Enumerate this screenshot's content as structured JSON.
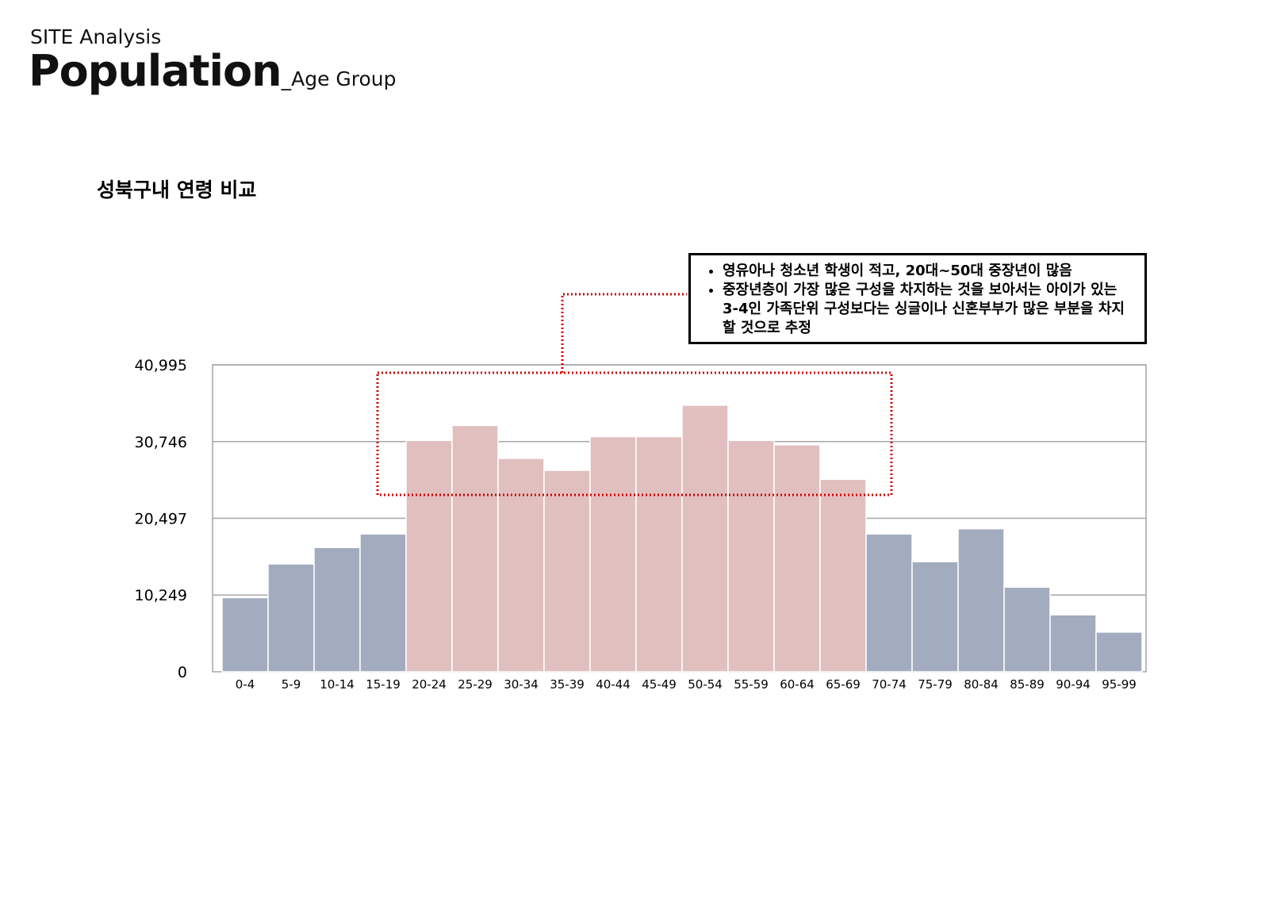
{
  "header": {
    "kicker": "SITE Analysis",
    "title": "Population",
    "title_suffix": "_Age Group"
  },
  "section_title": "성북구내 연령 비교",
  "callout": {
    "bullets": [
      "영유아나 청소년 학생이 적고, 20대~50대 중장년이 많음",
      "중장년층이 가장 많은 구성을 차지하는 것을 보아서는 아이가 있는 3-4인 가족단위 구성보다는 싱글이나 신혼부부가 많은 부분을 차지할 것으로 추정"
    ]
  },
  "colors": {
    "normal_bar": "#a3abbf",
    "highlight_bar": "#e1bfbf",
    "highlight_outline": "#d10000",
    "grid": "#a6a6a6"
  },
  "chart_data": {
    "type": "bar",
    "categories": [
      "0-4",
      "5-9",
      "10-14",
      "15-19",
      "20-24",
      "25-29",
      "30-34",
      "35-39",
      "40-44",
      "45-49",
      "50-54",
      "55-59",
      "60-64",
      "65-69",
      "70-74",
      "75-79",
      "80-84",
      "85-89",
      "90-94",
      "95-99"
    ],
    "values": [
      9900,
      14400,
      16600,
      18400,
      30900,
      32900,
      28500,
      26900,
      31400,
      31400,
      35600,
      30900,
      30300,
      25700,
      18400,
      14700,
      19100,
      11300,
      7600,
      5300
    ],
    "highlight": [
      false,
      false,
      false,
      false,
      true,
      true,
      true,
      true,
      true,
      true,
      true,
      true,
      true,
      true,
      false,
      false,
      false,
      false,
      false,
      false
    ],
    "yticks": [
      0,
      10249,
      20497,
      30746,
      40995
    ],
    "ytick_labels": [
      "0",
      "10,249",
      "20,497",
      "30,746",
      "40,995"
    ],
    "ylim": [
      0,
      40995
    ],
    "title": "",
    "xlabel": "",
    "ylabel": "",
    "grid": true,
    "highlight_range": [
      "20-24",
      "65-69"
    ]
  }
}
